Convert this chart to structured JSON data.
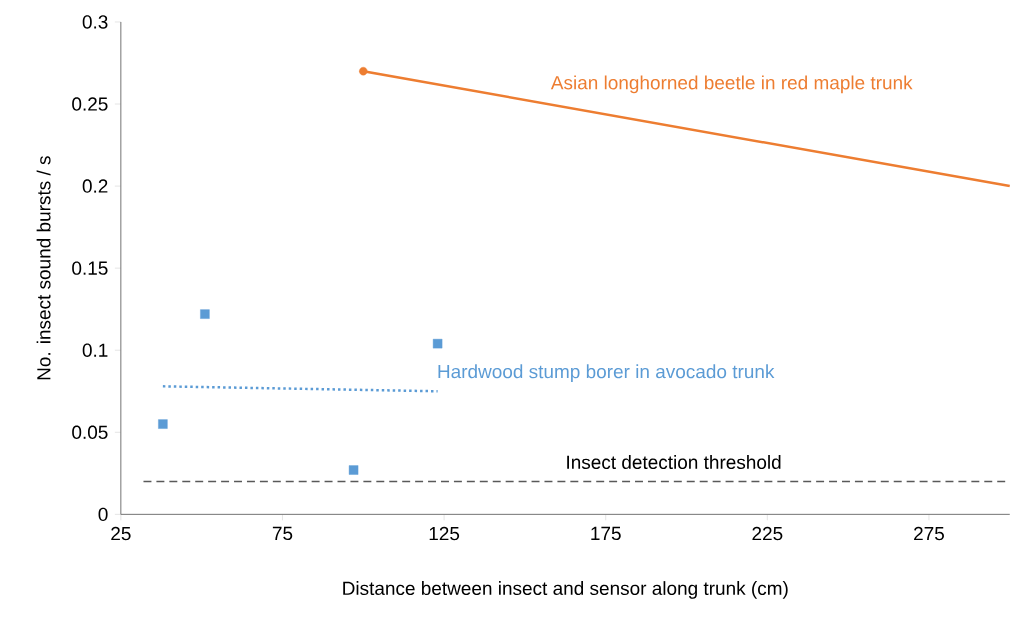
{
  "chart_data": {
    "type": "scatter",
    "xlabel": "Distance between insect and sensor along trunk (cm)",
    "ylabel": "No. insect sound bursts / s",
    "xlim": [
      25,
      300
    ],
    "xticks": [
      25,
      75,
      125,
      175,
      225,
      275
    ],
    "ylim": [
      0,
      0.3
    ],
    "yticks": [
      0,
      0.05,
      0.1,
      0.15,
      0.2,
      0.25,
      0.3
    ],
    "grid": false,
    "series": [
      {
        "name": "Asian longhorned beetle in red maple trunk",
        "type": "line",
        "color": "#ed7d31",
        "x": [
          100,
          300
        ],
        "values": [
          0.27,
          0.2
        ],
        "marker": "none",
        "line_style": "solid"
      },
      {
        "color": "#ed7d31",
        "x": [
          100
        ],
        "values": [
          0.27
        ],
        "marker": "circle"
      },
      {
        "name": "Hardwood stump borer in avocado trunk",
        "color": "#5b9bd5",
        "x": [
          38,
          51,
          97,
          123
        ],
        "values": [
          0.055,
          0.122,
          0.027,
          0.104
        ],
        "marker": "square"
      },
      {
        "type": "line",
        "color": "#5b9bd5",
        "x": [
          38,
          123
        ],
        "values": [
          0.078,
          0.075
        ],
        "marker": "none",
        "line_style": "dotted"
      }
    ],
    "ref_lines": [
      {
        "axis": "y",
        "value": 0.02,
        "label": "Insect detection threshold",
        "color": "#595959",
        "line_style": "dashed"
      }
    ]
  }
}
